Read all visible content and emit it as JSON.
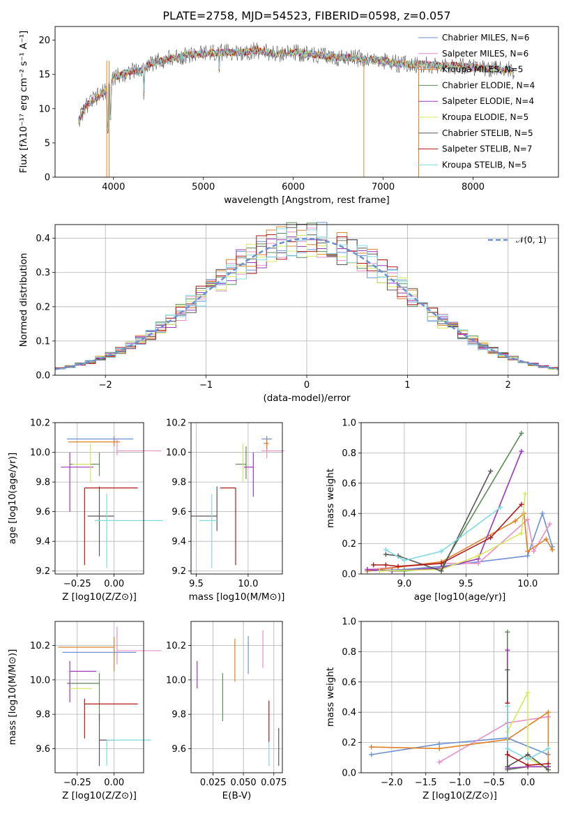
{
  "title": "PLATE=2758, MJD=54523, FIBERID=0598, z=0.057",
  "colors": [
    "#6a8fd4",
    "#e98fc8",
    "#e08027",
    "#5b8c57",
    "#9b35b8",
    "#d6e85a",
    "#585858",
    "#b01818",
    "#7fdbe0"
  ],
  "charts": {
    "spectrum": {
      "type": "line",
      "xlabel": "wavelength [Angstrom, rest frame]",
      "ylabel": "Flux [fλ10⁻¹⁷ erg cm⁻² s⁻¹ A⁻¹]",
      "xlim": [
        3350,
        8950
      ],
      "ylim": [
        0,
        22
      ],
      "xticks": [
        "4000",
        "5000",
        "6000",
        "7000",
        "8000"
      ],
      "yticks": [
        "0",
        "5",
        "10",
        "15",
        "20"
      ],
      "legend": [
        "Chabrier MILES, N_SSP=6",
        "Salpeter MILES, N_SSP=6",
        "Kroupa MILES, N_SSP=5",
        "Chabrier ELODIE, N_SSP=4",
        "Salpeter ELODIE, N_SSP=4",
        "Kroupa ELODIE, N_SSP=5",
        "Chabrier STELIB, N_SSP=5",
        "Salpeter STELIB, N_SSP=7",
        "Kroupa STELIB, N_SSP=5"
      ],
      "continuum_x": [
        3600,
        3700,
        3800,
        3900,
        4000,
        4100,
        4200,
        4300,
        4400,
        4500,
        4600,
        4800,
        5000,
        5200,
        5400,
        5600,
        5800,
        6000,
        6200,
        6400,
        6600,
        6800,
        7000,
        7200,
        7400,
        7600,
        7800,
        8000,
        8200,
        8400,
        8450
      ],
      "continuum_y": [
        8.0,
        10.5,
        11.5,
        12.5,
        14.5,
        15.0,
        15.5,
        15.5,
        16.5,
        17.0,
        17.2,
        17.8,
        18.0,
        18.2,
        18.2,
        18.5,
        18.0,
        18.2,
        18.0,
        17.5,
        17.5,
        17.2,
        17.0,
        16.5,
        16.5,
        16.3,
        16.3,
        16.0,
        15.8,
        15.7,
        15.5
      ]
    },
    "residuals": {
      "type": "line",
      "xlabel": "(data-model)/error",
      "ylabel": "Normed distribution",
      "xlim": [
        -2.5,
        2.5
      ],
      "ylim": [
        0,
        0.44
      ],
      "xticks": [
        "−2",
        "−1",
        "0",
        "1",
        "2"
      ],
      "yticks": [
        "0.0",
        "0.1",
        "0.2",
        "0.3",
        "0.4"
      ],
      "legend": "𝒩(0, 1)",
      "bin_width": 0.1
    },
    "age_vs_Z": {
      "type": "scatter",
      "xlabel": "Z [log10(Z/Z⊙)]",
      "ylabel": "age  [log10(age/yr)]",
      "xlim": [
        -0.4,
        0.2
      ],
      "ylim": [
        9.18,
        10.2
      ],
      "xticks": [
        "−0.25",
        "0.00"
      ],
      "yticks": [
        "9.2",
        "9.4",
        "9.6",
        "9.8",
        "10.0",
        "10.2"
      ],
      "points": [
        {
          "x": 0.0,
          "xerr": [
            0.32,
            0.13
          ],
          "y": 10.09,
          "yerr": [
            0.02,
            0.02
          ]
        },
        {
          "x": 0.02,
          "xerr": [
            0.0,
            0.3
          ],
          "y": 10.01,
          "yerr": [
            0.03,
            0.08
          ]
        },
        {
          "x": 0.0,
          "xerr": [
            0.31,
            0.04
          ],
          "y": 10.07,
          "yerr": [
            0.03,
            0.02
          ]
        },
        {
          "x": -0.1,
          "xerr": [
            0.2,
            0.0
          ],
          "y": 9.92,
          "yerr": [
            0.08,
            0.08
          ]
        },
        {
          "x": -0.3,
          "xerr": [
            0.06,
            0.16
          ],
          "y": 9.9,
          "yerr": [
            0.3,
            0.1
          ]
        },
        {
          "x": -0.16,
          "xerr": [
            0.12,
            0.0
          ],
          "y": 9.92,
          "yerr": [
            0.12,
            0.14
          ]
        },
        {
          "x": -0.1,
          "xerr": [
            0.08,
            0.1
          ],
          "y": 9.57,
          "yerr": [
            0.27,
            0.2
          ]
        },
        {
          "x": -0.2,
          "xerr": [
            0.0,
            0.36
          ],
          "y": 9.76,
          "yerr": [
            0.52,
            0.0
          ]
        },
        {
          "x": -0.05,
          "xerr": [
            0.08,
            0.38
          ],
          "y": 9.54,
          "yerr": [
            0.32,
            0.18
          ]
        }
      ]
    },
    "age_vs_mass": {
      "type": "scatter",
      "xlabel": "mass [log10(M/M⊙)]",
      "xlim": [
        9.45,
        10.33
      ],
      "ylim": [
        9.18,
        10.2
      ],
      "xticks": [
        "9.5",
        "10.0"
      ],
      "yticks": [
        "9.2",
        "9.4",
        "9.6",
        "9.8",
        "10.0",
        "10.2"
      ],
      "points": [
        {
          "x": 10.18,
          "xerr": [
            0.05,
            0.05
          ],
          "y": 10.09,
          "yerr": [
            0.03,
            0.02
          ]
        },
        {
          "x": 10.18,
          "xerr": [
            0.05,
            0.17
          ],
          "y": 10.01,
          "yerr": [
            0.05,
            0.08
          ]
        },
        {
          "x": 10.18,
          "xerr": [
            0.03,
            0.02
          ],
          "y": 10.06,
          "yerr": [
            0.04,
            0.04
          ]
        },
        {
          "x": 9.98,
          "xerr": [
            0.1,
            0.0
          ],
          "y": 9.92,
          "yerr": [
            0.1,
            0.12
          ]
        },
        {
          "x": 10.05,
          "xerr": [
            0.09,
            0.0
          ],
          "y": 9.9,
          "yerr": [
            0.2,
            0.1
          ]
        },
        {
          "x": 9.95,
          "xerr": [
            0.0,
            0.0
          ],
          "y": 9.9,
          "yerr": [
            0.1,
            0.16
          ]
        },
        {
          "x": 9.7,
          "xerr": [
            0.25,
            0.0
          ],
          "y": 9.57,
          "yerr": [
            0.1,
            0.2
          ]
        },
        {
          "x": 9.88,
          "xerr": [
            0.15,
            0.0
          ],
          "y": 9.76,
          "yerr": [
            0.52,
            0.0
          ]
        },
        {
          "x": 9.65,
          "xerr": [
            0.12,
            0.05
          ],
          "y": 9.54,
          "yerr": [
            0.32,
            0.18
          ]
        }
      ]
    },
    "weight_vs_age": {
      "type": "line",
      "xlabel": "age  [log10(age/yr)]",
      "ylabel": "mass weight",
      "xlim": [
        8.65,
        10.25
      ],
      "ylim": [
        0,
        1.0
      ],
      "xticks": [
        "9.0",
        "9.5",
        "10.0"
      ],
      "yticks": [
        "0.0",
        "0.2",
        "0.4",
        "0.6",
        "0.8",
        "1.0"
      ],
      "series": [
        {
          "x": [
            8.7,
            9.0,
            9.3,
            10.0,
            10.12,
            10.2
          ],
          "y": [
            0.02,
            0.03,
            0.05,
            0.12,
            0.4,
            0.18
          ]
        },
        {
          "x": [
            8.7,
            9.3,
            9.6,
            10.0,
            10.05,
            10.18
          ],
          "y": [
            0.03,
            0.07,
            0.07,
            0.36,
            0.15,
            0.33
          ]
        },
        {
          "x": [
            8.7,
            9.3,
            9.9,
            9.97,
            10.0,
            10.15,
            10.2
          ],
          "y": [
            0.02,
            0.08,
            0.35,
            0.4,
            0.15,
            0.23,
            0.16
          ]
        },
        {
          "x": [
            8.9,
            9.0,
            9.3,
            9.95
          ],
          "y": [
            0.02,
            0.02,
            0.04,
            0.93
          ]
        },
        {
          "x": [
            8.7,
            8.9,
            9.3,
            9.6,
            9.95
          ],
          "y": [
            0.03,
            0.02,
            0.04,
            0.1,
            0.81
          ]
        },
        {
          "x": [
            8.8,
            9.3,
            9.6,
            9.95,
            9.98
          ],
          "y": [
            0.02,
            0.03,
            0.12,
            0.27,
            0.53
          ]
        },
        {
          "x": [
            8.85,
            8.95,
            9.3,
            9.7
          ],
          "y": [
            0.13,
            0.12,
            0.02,
            0.68
          ]
        },
        {
          "x": [
            8.75,
            8.85,
            8.95,
            9.3,
            9.7,
            9.95
          ],
          "y": [
            0.06,
            0.06,
            0.05,
            0.07,
            0.24,
            0.46
          ]
        },
        {
          "x": [
            8.85,
            9.0,
            9.3,
            9.78
          ],
          "y": [
            0.16,
            0.09,
            0.15,
            0.44
          ]
        }
      ]
    },
    "mass_vs_Z": {
      "type": "scatter",
      "xlabel": "Z [log10(Z/Z⊙)]",
      "ylabel": "mass [log10(M/M⊙)]",
      "xlim": [
        -0.4,
        0.2
      ],
      "ylim": [
        9.46,
        10.34
      ],
      "xticks": [
        "−0.25",
        "0.00"
      ],
      "yticks": [
        "9.6",
        "9.8",
        "10.0",
        "10.2"
      ],
      "points": [
        {
          "x": 0.0,
          "xerr": [
            0.35,
            0.15
          ],
          "y": 10.16,
          "yerr": [
            0.02,
            0.02
          ]
        },
        {
          "x": 0.02,
          "xerr": [
            0.0,
            0.3
          ],
          "y": 10.17,
          "yerr": [
            0.08,
            0.14
          ]
        },
        {
          "x": 0.0,
          "xerr": [
            0.38,
            0.0
          ],
          "y": 10.19,
          "yerr": [
            0.14,
            0.06
          ]
        },
        {
          "x": -0.1,
          "xerr": [
            0.22,
            0.0
          ],
          "y": 9.98,
          "yerr": [
            0.22,
            0.06
          ]
        },
        {
          "x": -0.3,
          "xerr": [
            0.0,
            0.18
          ],
          "y": 10.05,
          "yerr": [
            0.18,
            0.06
          ]
        },
        {
          "x": -0.15,
          "xerr": [
            0.15,
            0.0
          ],
          "y": 9.95,
          "yerr": [
            0.0,
            0.0
          ]
        },
        {
          "x": -0.1,
          "xerr": [
            0.0,
            0.1
          ],
          "y": 9.65,
          "yerr": [
            0.15,
            0.15
          ]
        },
        {
          "x": -0.2,
          "xerr": [
            0.0,
            0.36
          ],
          "y": 9.86,
          "yerr": [
            0.2,
            0.03
          ]
        },
        {
          "x": -0.05,
          "xerr": [
            0.0,
            0.3
          ],
          "y": 9.65,
          "yerr": [
            0.15,
            0.0
          ]
        }
      ]
    },
    "mass_vs_ebv": {
      "type": "scatter",
      "xlabel": "E(B-V)",
      "xlim": [
        0.007,
        0.082
      ],
      "ylim": [
        9.46,
        10.34
      ],
      "xticks": [
        "0.025",
        "0.050",
        "0.075"
      ],
      "yticks": [
        "9.6",
        "9.8",
        "10.0",
        "10.2"
      ],
      "points": [
        {
          "x": 0.054,
          "y": 10.145,
          "yerr": [
            0.11,
            0.11
          ]
        },
        {
          "x": 0.066,
          "y": 10.18,
          "yerr": [
            0.11,
            0.11
          ]
        },
        {
          "x": 0.043,
          "y": 10.1,
          "yerr": [
            0.11,
            0.14
          ]
        },
        {
          "x": 0.033,
          "y": 9.9,
          "yerr": [
            0.14,
            0.14
          ]
        },
        {
          "x": 0.012,
          "y": 10.03,
          "yerr": [
            0.08,
            0.08
          ]
        },
        {
          "x": 0.012,
          "y": 9.88,
          "yerr": [
            0.0,
            0.0
          ]
        },
        {
          "x": 0.079,
          "y": 9.61,
          "yerr": [
            0.11,
            0.11
          ]
        },
        {
          "x": 0.071,
          "y": 9.76,
          "yerr": [
            0.12,
            0.12
          ]
        },
        {
          "x": 0.071,
          "y": 9.58,
          "yerr": [
            0.08,
            0.06
          ]
        }
      ]
    },
    "weight_vs_Z": {
      "type": "line",
      "xlabel": "Z [log10(Z/Z⊙)]",
      "ylabel": "mass weight",
      "xlim": [
        -2.45,
        0.45
      ],
      "ylim": [
        0,
        1.0
      ],
      "xticks": [
        "−2.0",
        "−1.5",
        "−1.0",
        "−0.5",
        "0.0"
      ],
      "yticks": [
        "0.0",
        "0.2",
        "0.4",
        "0.6",
        "0.8",
        "1.0"
      ],
      "series": [
        {
          "x": [
            -2.3,
            -1.3,
            -0.3,
            0.3
          ],
          "y": [
            0.12,
            0.19,
            0.23,
            0.12
          ]
        },
        {
          "x": [
            -1.3,
            -0.3,
            0.3
          ],
          "y": [
            0.07,
            0.33,
            0.37
          ]
        },
        {
          "x": [
            -2.3,
            -1.3,
            -0.3,
            0.3,
            0.3
          ],
          "y": [
            0.17,
            0.16,
            0.22,
            0.4,
            0.04
          ]
        },
        {
          "x": [
            -0.3,
            -0.3,
            0.0,
            0.3
          ],
          "y": [
            0.93,
            0.02,
            0.04,
            0.04
          ]
        },
        {
          "x": [
            -0.3,
            -0.3,
            0.0,
            0.3
          ],
          "y": [
            0.81,
            0.03,
            0.04,
            0.04
          ]
        },
        {
          "x": [
            -0.3,
            0.0,
            0.0,
            0.3
          ],
          "y": [
            0.27,
            0.53,
            0.1,
            0.02
          ]
        },
        {
          "x": [
            -0.3,
            -0.3,
            0.0,
            0.3
          ],
          "y": [
            0.68,
            0.04,
            0.12,
            0.02
          ]
        },
        {
          "x": [
            -0.3,
            -0.3,
            0.0,
            0.3
          ],
          "y": [
            0.46,
            0.12,
            0.05,
            0.06
          ]
        },
        {
          "x": [
            -0.3,
            -0.3,
            0.0,
            0.3
          ],
          "y": [
            0.44,
            0.16,
            0.09,
            0.16
          ]
        }
      ]
    }
  }
}
